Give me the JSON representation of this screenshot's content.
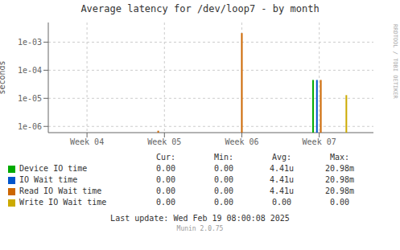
{
  "chart_data": {
    "type": "bar",
    "title": "Average latency for /dev/loop7 - by month",
    "ylabel": "seconds",
    "log": "y",
    "grid": true,
    "xlim": [
      0,
      4.2
    ],
    "xticks": [
      {
        "value": 0.5,
        "label": "Week 04"
      },
      {
        "value": 1.5,
        "label": "Week 05"
      },
      {
        "value": 2.5,
        "label": "Week 06"
      },
      {
        "value": 3.5,
        "label": "Week 07"
      }
    ],
    "ylim": [
      6e-07,
      0.005
    ],
    "yticks": [
      {
        "value": 1e-06,
        "label": "1e-06"
      },
      {
        "value": 1e-05,
        "label": "1e-05"
      },
      {
        "value": 0.0001,
        "label": "1e-04"
      },
      {
        "value": 0.001,
        "label": "1e-03"
      }
    ],
    "series": [
      {
        "name": "Device IO time",
        "color": "#00aa00",
        "x": [
          3.42
        ],
        "values": [
          4.5e-05
        ]
      },
      {
        "name": "IO Wait time",
        "color": "#0055cc",
        "x": [
          3.47
        ],
        "values": [
          4.5e-05
        ]
      },
      {
        "name": "Read IO Wait time",
        "color": "#cc6600",
        "x": [
          1.42,
          2.5,
          3.52
        ],
        "values": [
          7e-07,
          0.0021,
          4.5e-05
        ]
      },
      {
        "name": "Write IO Wait time",
        "color": "#ccaa00",
        "x": [
          3.85
        ],
        "values": [
          1.3e-05
        ]
      }
    ],
    "table": {
      "headers": [
        "Cur:",
        "Min:",
        "Avg:",
        "Max:"
      ],
      "rows": [
        [
          "0.00",
          "0.00",
          "4.41u",
          "20.98m"
        ],
        [
          "0.00",
          "0.00",
          "4.41u",
          "20.98m"
        ],
        [
          "0.00",
          "0.00",
          "4.41u",
          "20.98m"
        ],
        [
          "0.00",
          "0.00",
          "0.00",
          "0.00"
        ]
      ]
    },
    "annotations": [
      "Last update: Wed Feb 19 08:00:08 2025",
      "Munin 2.0.75",
      "RRDTOOL / TOBI OETIKER"
    ]
  }
}
